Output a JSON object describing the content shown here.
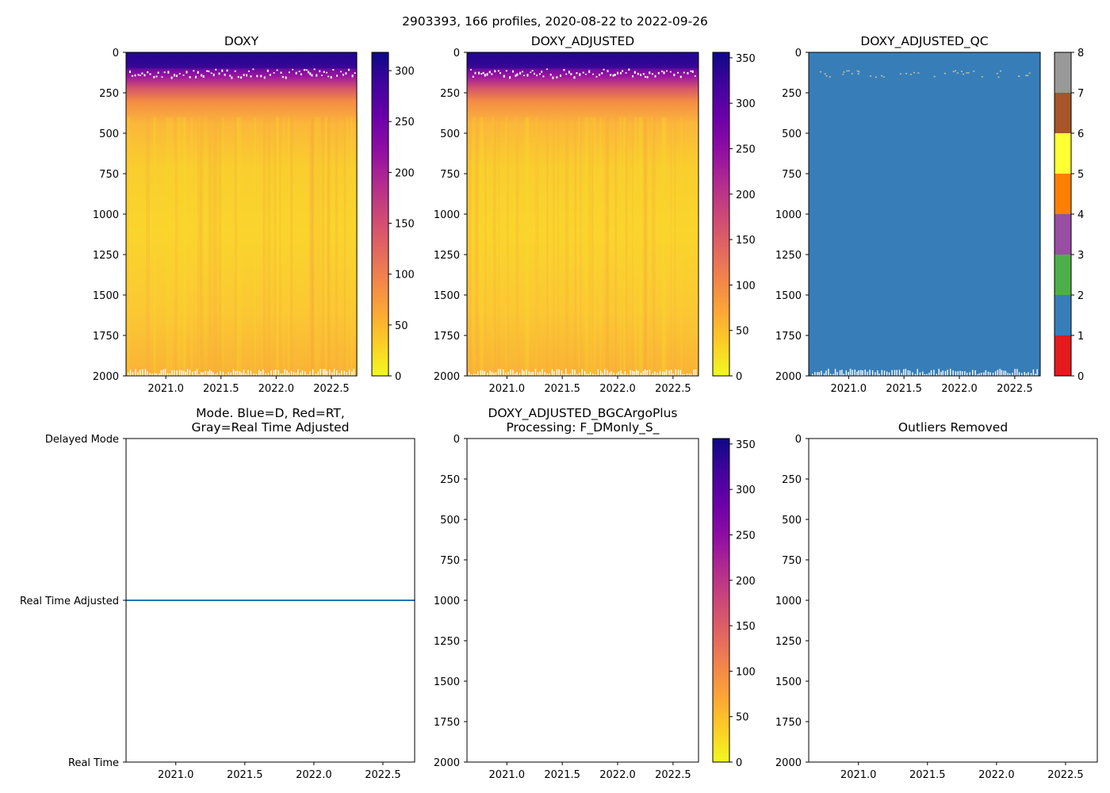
{
  "figure": {
    "suptitle": "2903393, 166 profiles, 2020-08-22 to 2022-09-26"
  },
  "chart_data": [
    {
      "id": "doxy",
      "type": "heatmap",
      "title": "DOXY",
      "x_ticks": [
        "2021.0",
        "2021.5",
        "2022.0",
        "2022.5"
      ],
      "x_tick_values": [
        2021.0,
        2021.5,
        2022.0,
        2022.5
      ],
      "xlim": [
        2020.64,
        2022.73
      ],
      "y_ticks": [
        "0",
        "250",
        "500",
        "750",
        "1000",
        "1250",
        "1500",
        "1750",
        "2000"
      ],
      "ylim": [
        2000,
        0
      ],
      "colormap": "plasma_r",
      "colorbar_ticks": [
        "0",
        "50",
        "100",
        "150",
        "200",
        "250",
        "300"
      ],
      "colorbar_range": [
        0,
        318
      ],
      "data_summary": {
        "surface_value": 300,
        "deep_value": 45,
        "min_zone_value": 25
      }
    },
    {
      "id": "doxy-adjusted",
      "type": "heatmap",
      "title": "DOXY_ADJUSTED",
      "x_ticks": [
        "2021.0",
        "2021.5",
        "2022.0",
        "2022.5"
      ],
      "x_tick_values": [
        2021.0,
        2021.5,
        2022.0,
        2022.5
      ],
      "xlim": [
        2020.64,
        2022.73
      ],
      "y_ticks": [
        "0",
        "250",
        "500",
        "750",
        "1000",
        "1250",
        "1500",
        "1750",
        "2000"
      ],
      "ylim": [
        2000,
        0
      ],
      "colormap": "plasma_r",
      "colorbar_ticks": [
        "0",
        "50",
        "100",
        "150",
        "200",
        "250",
        "300",
        "350"
      ],
      "colorbar_range": [
        0,
        356
      ],
      "data_summary": {
        "surface_value": 335,
        "deep_value": 50,
        "min_zone_value": 28
      }
    },
    {
      "id": "doxy-adjusted-qc",
      "type": "heatmap",
      "title": "DOXY_ADJUSTED_QC",
      "x_ticks": [
        "2021.0",
        "2021.5",
        "2022.0",
        "2022.5"
      ],
      "x_tick_values": [
        2021.0,
        2021.5,
        2022.0,
        2022.5
      ],
      "xlim": [
        2020.64,
        2022.73
      ],
      "y_ticks": [
        "0",
        "250",
        "500",
        "750",
        "1000",
        "1250",
        "1500",
        "1750",
        "2000"
      ],
      "ylim": [
        2000,
        0
      ],
      "fill_value": 1,
      "colorbar_ticks": [
        "0",
        "1",
        "2",
        "3",
        "4",
        "5",
        "6",
        "7",
        "8"
      ],
      "qc_colors": [
        "#e41a1c",
        "#377eb8",
        "#4daf4a",
        "#984ea3",
        "#ff7f00",
        "#ffff33",
        "#a65628",
        "#f781bf",
        "#999999"
      ]
    },
    {
      "id": "mode",
      "type": "line",
      "title": "Mode. Blue=D, Red=RT,",
      "title_line2": "Gray=Real Time Adjusted",
      "x_ticks": [
        "2021.0",
        "2021.5",
        "2022.0",
        "2022.5"
      ],
      "x_tick_values": [
        2021.0,
        2021.5,
        2022.0,
        2022.5
      ],
      "xlim": [
        2020.64,
        2022.73
      ],
      "y_ticks": [
        "Real Time",
        "Real Time Adjusted",
        "Delayed Mode"
      ],
      "y_tick_values": [
        0,
        1,
        2
      ],
      "ylim": [
        0,
        2
      ],
      "series": [
        {
          "name": "mode",
          "value": 1,
          "color": "#1f77b4"
        }
      ]
    },
    {
      "id": "bgcargoplus",
      "type": "heatmap",
      "title": "DOXY_ADJUSTED_BGCArgoPlus",
      "title_line2": "Processing: F_DMonly_S_",
      "x_ticks": [
        "2021.0",
        "2021.5",
        "2022.0",
        "2022.5"
      ],
      "x_tick_values": [
        2021.0,
        2021.5,
        2022.0,
        2022.5
      ],
      "xlim": [
        2020.64,
        2022.73
      ],
      "y_ticks": [
        "0",
        "250",
        "500",
        "750",
        "1000",
        "1250",
        "1500",
        "1750",
        "2000"
      ],
      "ylim": [
        2000,
        0
      ],
      "colormap": "plasma_r",
      "colorbar_ticks": [
        "0",
        "50",
        "100",
        "150",
        "200",
        "250",
        "300",
        "350"
      ],
      "colorbar_range": [
        0,
        356
      ],
      "empty": true
    },
    {
      "id": "outliers",
      "type": "scatter",
      "title": "Outliers Removed",
      "x_ticks": [
        "2021.0",
        "2021.5",
        "2022.0",
        "2022.5"
      ],
      "x_tick_values": [
        2021.0,
        2021.5,
        2022.0,
        2022.5
      ],
      "xlim": [
        2020.64,
        2022.73
      ],
      "y_ticks": [
        "0",
        "250",
        "500",
        "750",
        "1000",
        "1250",
        "1500",
        "1750",
        "2000"
      ],
      "ylim": [
        2000,
        0
      ],
      "empty": true
    }
  ]
}
